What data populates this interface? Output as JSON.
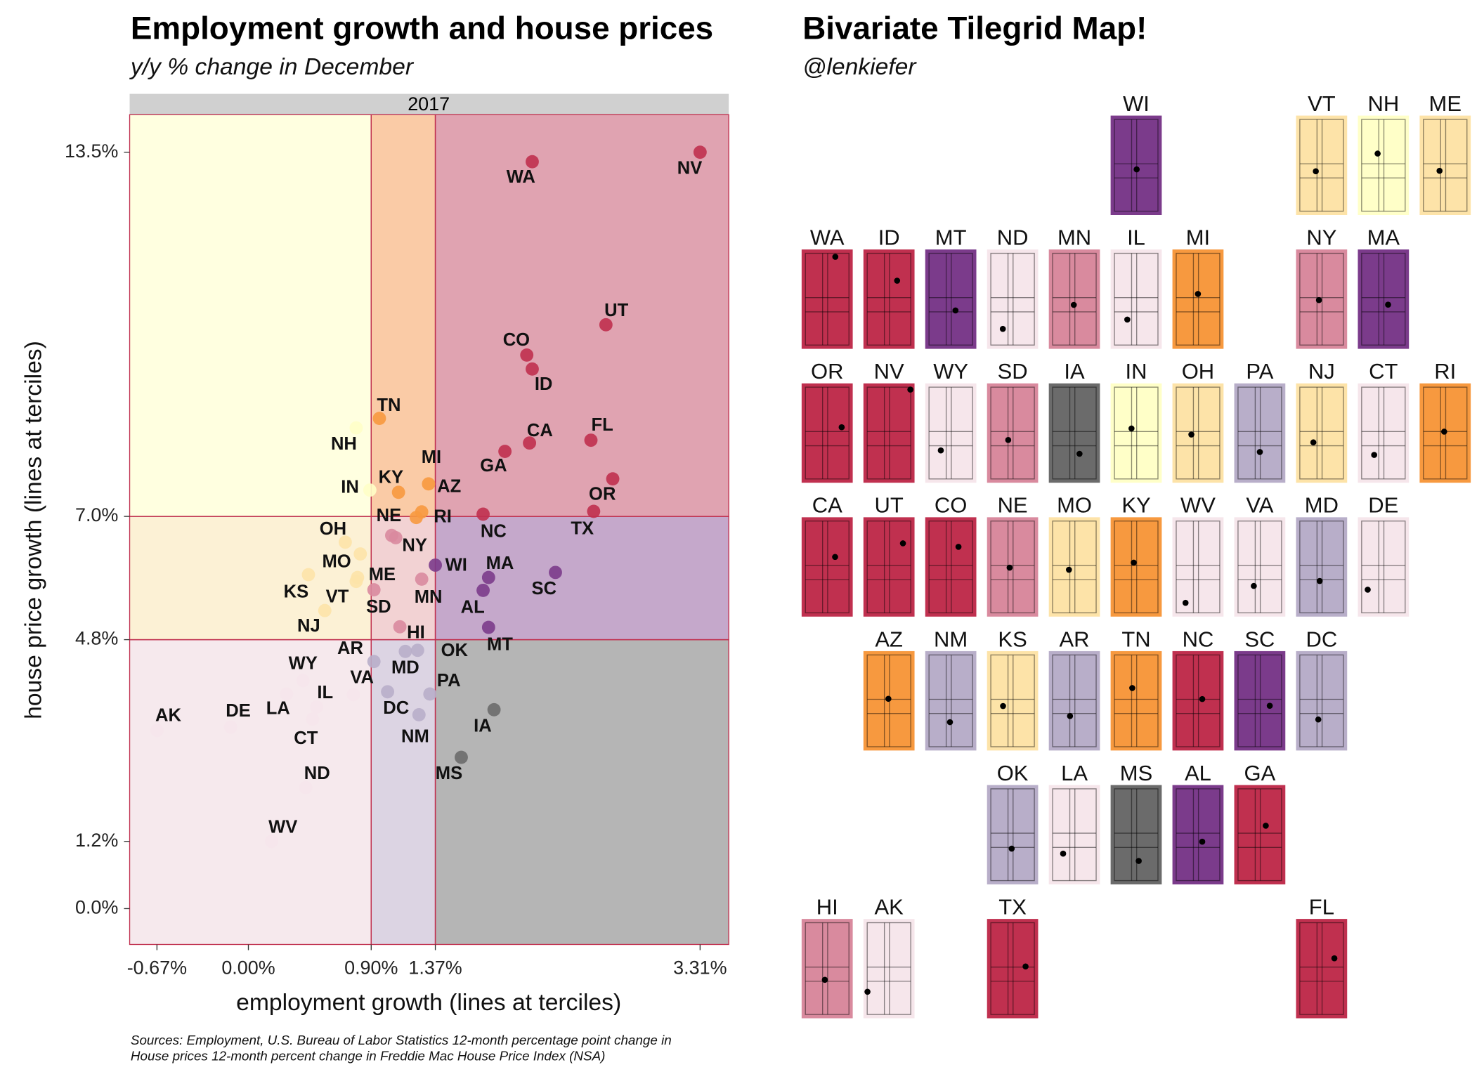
{
  "chart_data": [
    {
      "type": "scatter",
      "title": "Employment growth and house prices",
      "subtitle": "y/y % change in December",
      "facet": "2017",
      "x_label": "employment growth (lines at terciles)",
      "y_label": "house price growth (lines at terciles)",
      "caption": [
        "Sources: Employment, U.S. Bureau of Labor Statistics 12-month percentage point change in",
        "House prices 12-month percent change in Freddie Mac House Price Index (NSA)"
      ],
      "xlim": [
        -0.87,
        3.52
      ],
      "ylim": [
        -0.64,
        14.17
      ],
      "xticks": [
        {
          "value": -0.67,
          "label": "-0.67%"
        },
        {
          "value": 0,
          "label": "0.00%"
        },
        {
          "value": 0.9,
          "label": "0.90%"
        },
        {
          "value": 1.37,
          "label": "1.37%"
        },
        {
          "value": 3.31,
          "label": "3.31%"
        }
      ],
      "yticks": [
        {
          "value": 0,
          "label": "0.0%"
        },
        {
          "value": 1.2,
          "label": "1.2%"
        },
        {
          "value": 4.8,
          "label": "4.8%"
        },
        {
          "value": 7,
          "label": "7.0%"
        },
        {
          "value": 13.5,
          "label": "13.5%"
        }
      ],
      "x_terciles": [
        0.9,
        1.37
      ],
      "y_terciles": [
        4.8,
        7
      ],
      "region_colors": [
        [
          "#f6e9ed",
          "#dcd4e3",
          "#b5b5b5"
        ],
        [
          "#fcf1d5",
          "#f2d2d3",
          "#c5a8cb"
        ],
        [
          "#ffffe0",
          "#facba6",
          "#e0a3b1"
        ]
      ],
      "line_color": "#c0304f",
      "labels": [
        "WA",
        "NV",
        "UT",
        "CO",
        "ID",
        "TN",
        "CA",
        "FL",
        "NH",
        "GA",
        "OR",
        "TX",
        "MI",
        "KY",
        "AZ",
        "RI",
        "IN",
        "NE",
        "NY",
        "NC",
        "OH",
        "MO",
        "ME",
        "VT",
        "KS",
        "SD",
        "MN",
        "WI",
        "MA",
        "AL",
        "SC",
        "MT",
        "NJ",
        "HI",
        "AR",
        "OK",
        "MD",
        "WY",
        "VA",
        "PA",
        "IL",
        "LA",
        "DC",
        "IA",
        "CT",
        "NM",
        "AK",
        "DE",
        "MS",
        "ND",
        "WV"
      ],
      "x": [
        2.08,
        3.31,
        2.62,
        2.04,
        2.08,
        0.96,
        2.06,
        2.51,
        0.79,
        1.88,
        2.67,
        2.53,
        1.32,
        1.1,
        1.27,
        1.23,
        0.89,
        1.05,
        1.08,
        1.72,
        0.71,
        0.82,
        0.8,
        0.79,
        0.44,
        0.92,
        1.27,
        1.37,
        1.76,
        1.72,
        2.25,
        1.76,
        0.56,
        1.11,
        0.92,
        1.24,
        1.15,
        0.4,
        0.77,
        1.33,
        0.5,
        0.28,
        1.02,
        1.8,
        0.47,
        1.25,
        -0.67,
        -0.13,
        1.56,
        0.42,
        0.17
      ],
      "values": [
        13.33,
        13.5,
        10.42,
        9.88,
        9.63,
        8.75,
        8.31,
        8.36,
        8.58,
        8.16,
        7.67,
        7.09,
        7.58,
        7.43,
        7.08,
        6.98,
        7.47,
        6.66,
        6.62,
        7.04,
        6.54,
        6.33,
        5.91,
        5.84,
        5.96,
        5.69,
        5.88,
        6.13,
        5.91,
        5.68,
        6.0,
        5.02,
        5.32,
        5.03,
        4.41,
        4.61,
        4.59,
        4.07,
        3.82,
        3.83,
        3.6,
        3.83,
        3.87,
        3.55,
        3.38,
        3.46,
        3.18,
        3.24,
        2.7,
        2.16,
        1.2
      ],
      "colors": [
        "#c0304f",
        "#c0304f",
        "#c0304f",
        "#c0304f",
        "#c0304f",
        "#f7993f",
        "#c0304f",
        "#c0304f",
        "#ffffc8",
        "#c0304f",
        "#c0304f",
        "#c0304f",
        "#f7993f",
        "#f7993f",
        "#f7993f",
        "#f7993f",
        "#ffffc8",
        "#d98a9e",
        "#d98a9e",
        "#c0304f",
        "#fde3a8",
        "#fde3a8",
        "#fde3a8",
        "#fde3a8",
        "#fde3a8",
        "#d98a9e",
        "#d98a9e",
        "#7b3b8b",
        "#7b3b8b",
        "#7b3b8b",
        "#7b3b8b",
        "#7b3b8b",
        "#fde3a8",
        "#d98a9e",
        "#b8aec9",
        "#b8aec9",
        "#b8aec9",
        "#f6e6eb",
        "#f6e6eb",
        "#b8aec9",
        "#f6e6eb",
        "#f6e6eb",
        "#b8aec9",
        "#6b6b6b",
        "#f6e6eb",
        "#b8aec9",
        "#f6e6eb",
        "#f6e6eb",
        "#6b6b6b",
        "#f6e6eb",
        "#f6e6eb"
      ]
    },
    {
      "type": "tilegrid",
      "title": "Bivariate Tilegrid Map!",
      "subtitle": "@lenkiefer"
    }
  ]
}
